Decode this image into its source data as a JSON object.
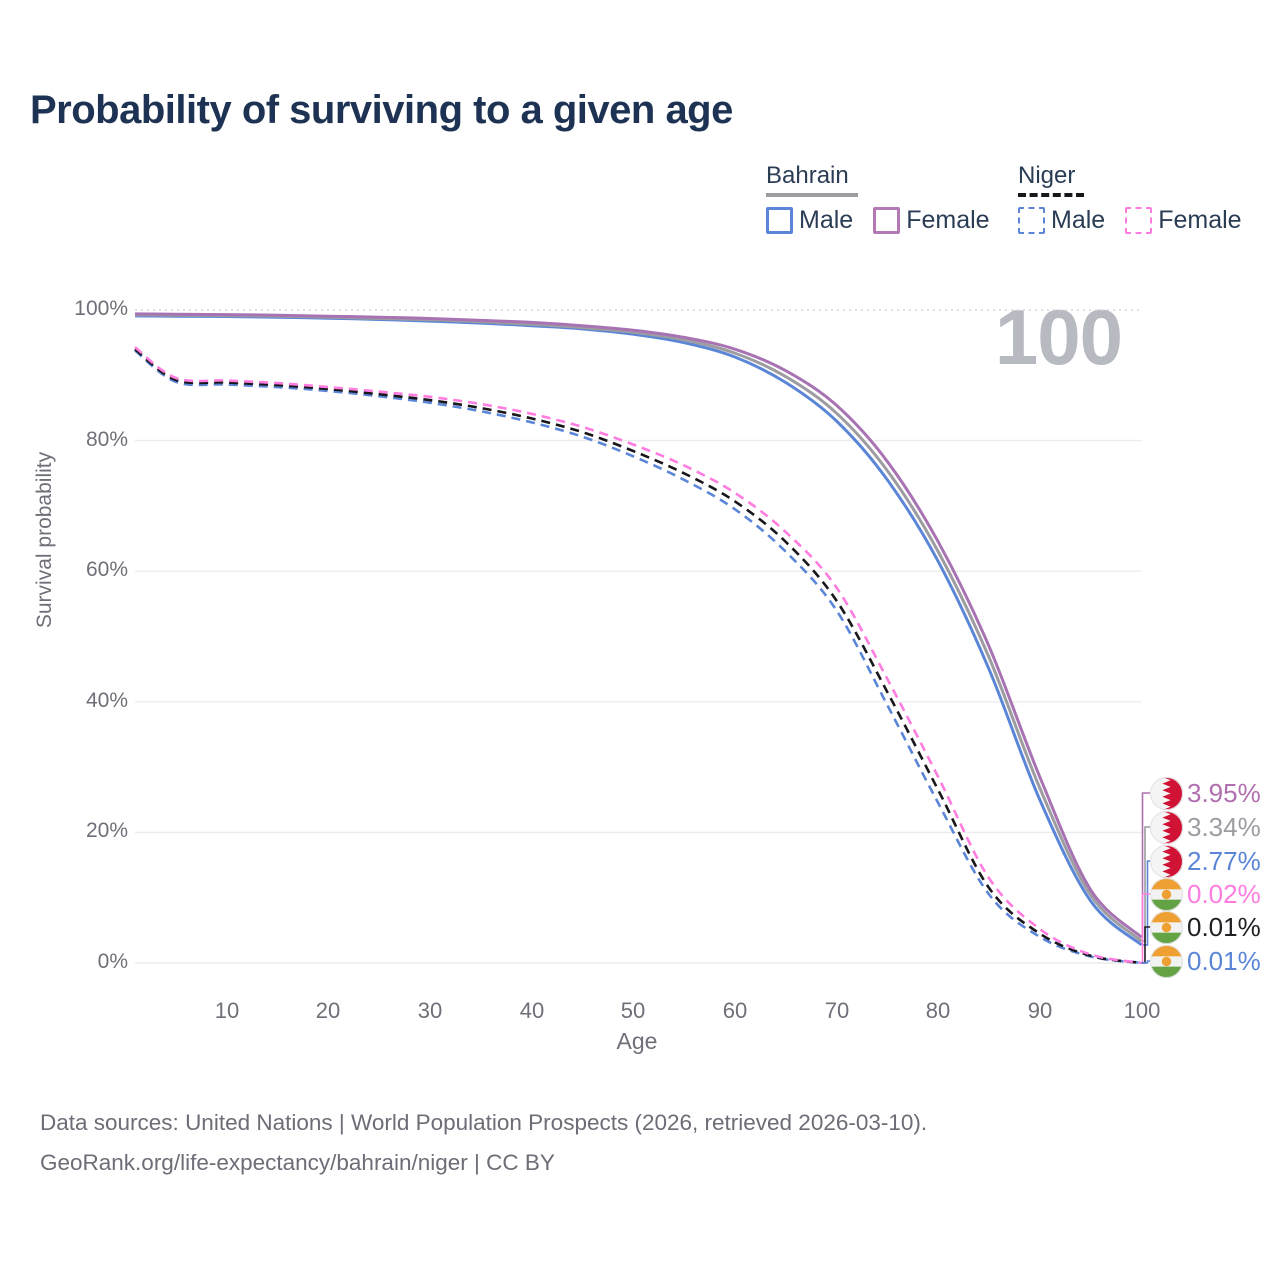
{
  "page_title": "Probability of surviving to a given age",
  "watermark_age": "100",
  "legend": {
    "groups": [
      {
        "country": "Bahrain",
        "line_style": "solid",
        "line_color": "#9c9ca1",
        "items": [
          {
            "label": "Male",
            "color": "#5b86d8"
          },
          {
            "label": "Female",
            "color": "#b279b4"
          }
        ]
      },
      {
        "country": "Niger",
        "line_style": "dashed",
        "line_color": "#17171c",
        "items": [
          {
            "label": "Male",
            "color": "#5b86d8"
          },
          {
            "label": "Female",
            "color": "#ff7ce0"
          }
        ]
      }
    ]
  },
  "chart_data": {
    "type": "line",
    "title": "Probability of surviving to a given age",
    "xlabel": "Age",
    "ylabel": "Survival probability",
    "xlim": [
      1,
      100
    ],
    "ylim": [
      0,
      100
    ],
    "grid": "horizontal",
    "legend_position": "top-right",
    "x_ticks": [
      10,
      20,
      30,
      40,
      50,
      60,
      70,
      80,
      90,
      100
    ],
    "y_ticks": [
      {
        "value": 0,
        "label": "0%"
      },
      {
        "value": 20,
        "label": "20%"
      },
      {
        "value": 40,
        "label": "40%"
      },
      {
        "value": 60,
        "label": "60%"
      },
      {
        "value": 80,
        "label": "80%"
      },
      {
        "value": 100,
        "label": "100%"
      }
    ],
    "ages": [
      1,
      5,
      10,
      15,
      20,
      25,
      30,
      35,
      40,
      45,
      50,
      55,
      60,
      65,
      70,
      75,
      80,
      85,
      90,
      95,
      100
    ],
    "series": [
      {
        "name": "Bahrain Male",
        "country": "Bahrain",
        "sex": "male",
        "color": "#5b86d8",
        "dash": "solid",
        "values": [
          99.1,
          99.05,
          99.0,
          98.9,
          98.75,
          98.55,
          98.3,
          98.0,
          97.6,
          97.1,
          96.3,
          95.0,
          92.8,
          88.9,
          83.0,
          74.0,
          61.5,
          45.0,
          25.0,
          9.5,
          2.77
        ]
      },
      {
        "name": "Bahrain Both sexes",
        "country": "Bahrain",
        "sex": "all",
        "color": "#9c9ca1",
        "dash": "solid",
        "values": [
          99.25,
          99.2,
          99.15,
          99.05,
          98.9,
          98.7,
          98.5,
          98.2,
          97.8,
          97.3,
          96.6,
          95.4,
          93.4,
          89.8,
          84.2,
          75.4,
          63.0,
          46.8,
          26.8,
          10.4,
          3.34
        ]
      },
      {
        "name": "Bahrain Female",
        "country": "Bahrain",
        "sex": "female",
        "color": "#a873b2",
        "dash": "solid",
        "values": [
          99.4,
          99.35,
          99.3,
          99.2,
          99.05,
          98.9,
          98.7,
          98.4,
          98.1,
          97.6,
          96.9,
          95.8,
          94.0,
          90.7,
          85.4,
          76.8,
          64.5,
          48.5,
          28.5,
          11.2,
          3.95
        ]
      },
      {
        "name": "Niger Male",
        "country": "Niger",
        "sex": "male",
        "color": "#5b86d8",
        "dash": "dashed",
        "values": [
          93.8,
          89.0,
          88.6,
          88.2,
          87.6,
          86.8,
          85.8,
          84.5,
          82.8,
          80.6,
          77.6,
          74.0,
          69.5,
          63.0,
          54.0,
          39.5,
          24.5,
          10.5,
          4.0,
          1.0,
          0.01
        ]
      },
      {
        "name": "Niger Both sexes",
        "country": "Niger",
        "sex": "all",
        "color": "#17171c",
        "dash": "dashed",
        "values": [
          94.0,
          89.3,
          88.9,
          88.5,
          87.9,
          87.1,
          86.2,
          85.0,
          83.4,
          81.3,
          78.4,
          75.0,
          70.7,
          64.5,
          55.5,
          41.5,
          26.5,
          11.5,
          4.5,
          1.1,
          0.01
        ]
      },
      {
        "name": "Niger Female",
        "country": "Niger",
        "sex": "female",
        "color": "#ff7ce0",
        "dash": "dashed",
        "values": [
          94.3,
          89.6,
          89.2,
          88.8,
          88.2,
          87.5,
          86.7,
          85.6,
          84.1,
          82.1,
          79.4,
          76.2,
          72.0,
          66.0,
          57.5,
          43.5,
          28.5,
          13.0,
          5.2,
          1.3,
          0.02
        ]
      }
    ],
    "end_labels": [
      {
        "text": "3.95%",
        "color": "#b16fb0",
        "flag": "bahrain",
        "series": "Bahrain Female"
      },
      {
        "text": "3.34%",
        "color": "#9c9ca2",
        "flag": "bahrain",
        "series": "Bahrain Both sexes"
      },
      {
        "text": "2.77%",
        "color": "#5b86d8",
        "flag": "bahrain",
        "series": "Bahrain Male"
      },
      {
        "text": "0.02%",
        "color": "#ff7ce0",
        "flag": "niger",
        "series": "Niger Female"
      },
      {
        "text": "0.01%",
        "color": "#1f1f24",
        "flag": "niger",
        "series": "Niger Both sexes"
      },
      {
        "text": "0.01%",
        "color": "#5b86d8",
        "flag": "niger",
        "series": "Niger Male"
      }
    ]
  },
  "footer": {
    "line1": "Data sources: United Nations | World Population Prospects (2026, retrieved 2026-03-10).",
    "line2": "GeoRank.org/life-expectancy/bahrain/niger | CC BY"
  }
}
